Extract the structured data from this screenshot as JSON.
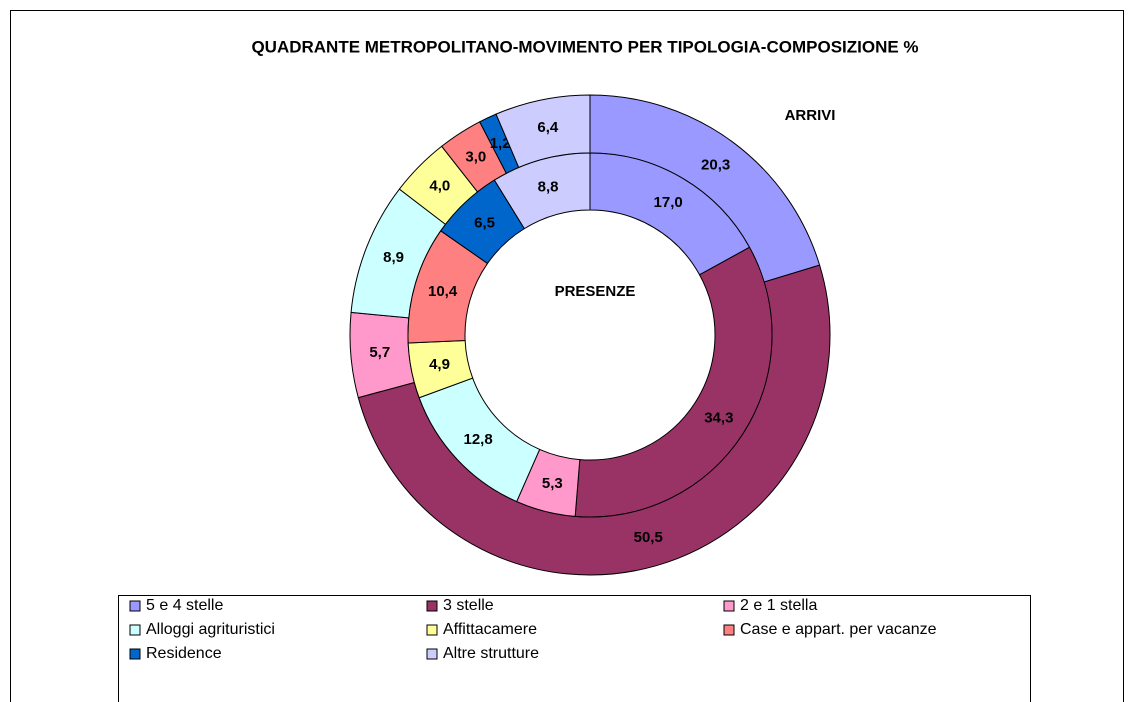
{
  "chart_data": {
    "type": "doughnut",
    "title": "QUADRANTE METROPOLITANO-MOVIMENTO PER TIPOLOGIA-COMPOSIZIONE %",
    "categories": [
      "5 e 4 stelle",
      "3 stelle",
      "2 e 1 stella",
      "Alloggi agrituristici",
      "Affittacamere",
      "Case e appart. per vacanze",
      "Residence",
      "Altre strutture"
    ],
    "colors": [
      "#9999FF",
      "#993366",
      "#FF99CC",
      "#CCFFFF",
      "#FFFF99",
      "#FF8080",
      "#0066CC",
      "#CCCCFF"
    ],
    "series": [
      {
        "name": "ARRIVI",
        "values": [
          20.3,
          50.5,
          5.7,
          8.9,
          4.0,
          3.0,
          1.2,
          6.4
        ],
        "value_labels": [
          "20,3",
          "50,5",
          "5,7",
          "8,9",
          "4,0",
          "3,0",
          "1,2",
          "6,4"
        ]
      },
      {
        "name": "PRESENZE",
        "values": [
          17.0,
          34.3,
          5.3,
          12.8,
          4.9,
          10.4,
          6.5,
          8.8
        ],
        "value_labels": [
          "17,0",
          "34,3",
          "5,3",
          "12,8",
          "4,9",
          "10,4",
          "6,5",
          "8,8"
        ]
      }
    ],
    "legend": "bottom"
  }
}
